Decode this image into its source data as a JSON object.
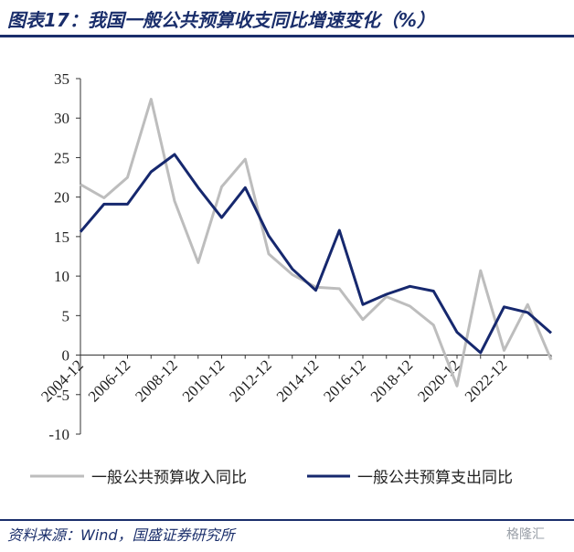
{
  "header": {
    "title": "图表17：我国一般公共预算收支同比增速变化（%）"
  },
  "footer": {
    "source": "资料来源：Wind，国盛证券研究所",
    "watermark": "格隆汇"
  },
  "chart_data": {
    "type": "line",
    "title": "",
    "xlabel": "",
    "ylabel": "",
    "ylim": [
      -10,
      35
    ],
    "yticks": [
      -10,
      -5,
      0,
      5,
      10,
      15,
      20,
      25,
      30,
      35
    ],
    "x": [
      "2004-12",
      "2005-12",
      "2006-12",
      "2007-12",
      "2008-12",
      "2009-12",
      "2010-12",
      "2011-12",
      "2012-12",
      "2013-12",
      "2014-12",
      "2015-12",
      "2016-12",
      "2017-12",
      "2018-12",
      "2019-12",
      "2020-12",
      "2021-12",
      "2022-12",
      "2023-12",
      "2024-12"
    ],
    "xtick_labels": [
      "2004-12",
      "2006-12",
      "2008-12",
      "2010-12",
      "2012-12",
      "2014-12",
      "2016-12",
      "2018-12",
      "2020-12",
      "2022-12"
    ],
    "grid": false,
    "legend": "bottom",
    "series": [
      {
        "name": "一般公共预算收入同比",
        "color": "#bdbdbd",
        "values": [
          21.6,
          19.9,
          22.5,
          32.4,
          19.5,
          11.7,
          21.3,
          24.8,
          12.8,
          10.2,
          8.6,
          8.4,
          4.5,
          7.4,
          6.2,
          3.8,
          -3.9,
          10.7,
          0.6,
          6.4,
          -0.6
        ]
      },
      {
        "name": "一般公共预算支出同比",
        "color": "#16286e",
        "values": [
          15.6,
          19.1,
          19.1,
          23.2,
          25.4,
          21.2,
          17.4,
          21.2,
          15.1,
          10.9,
          8.2,
          15.8,
          6.4,
          7.7,
          8.7,
          8.1,
          2.9,
          0.3,
          6.1,
          5.4,
          2.8
        ]
      }
    ]
  }
}
